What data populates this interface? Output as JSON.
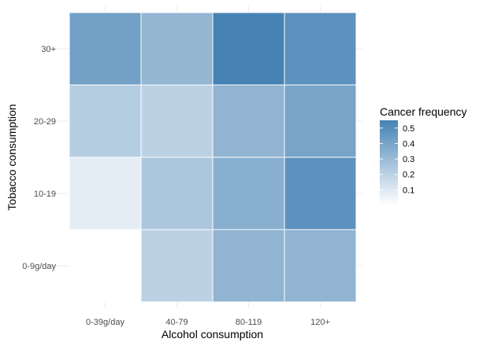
{
  "chart_data": {
    "type": "heatmap",
    "xlabel": "Alcohol consumption",
    "ylabel": "Tobacco consumption",
    "x_categories": [
      "0-39g/day",
      "40-79",
      "80-119",
      "120+"
    ],
    "y_categories": [
      "0-9g/day",
      "10-19",
      "20-29",
      "30+"
    ],
    "values": [
      [
        0.0,
        0.2,
        0.33,
        0.33
      ],
      [
        0.08,
        0.25,
        0.35,
        0.48
      ],
      [
        0.22,
        0.2,
        0.33,
        0.4
      ],
      [
        0.42,
        0.32,
        0.55,
        0.48
      ]
    ],
    "legend": {
      "title": "Cancer frequency",
      "ticks": [
        0.1,
        0.2,
        0.3,
        0.4,
        0.5
      ],
      "tick_labels": [
        "0.1",
        "0.2",
        "0.3",
        "0.4",
        "0.5"
      ],
      "range": [
        0.0,
        0.55
      ],
      "low_color": "#ffffff",
      "high_color": "#4682b4",
      "position": "right"
    },
    "grid": true
  }
}
